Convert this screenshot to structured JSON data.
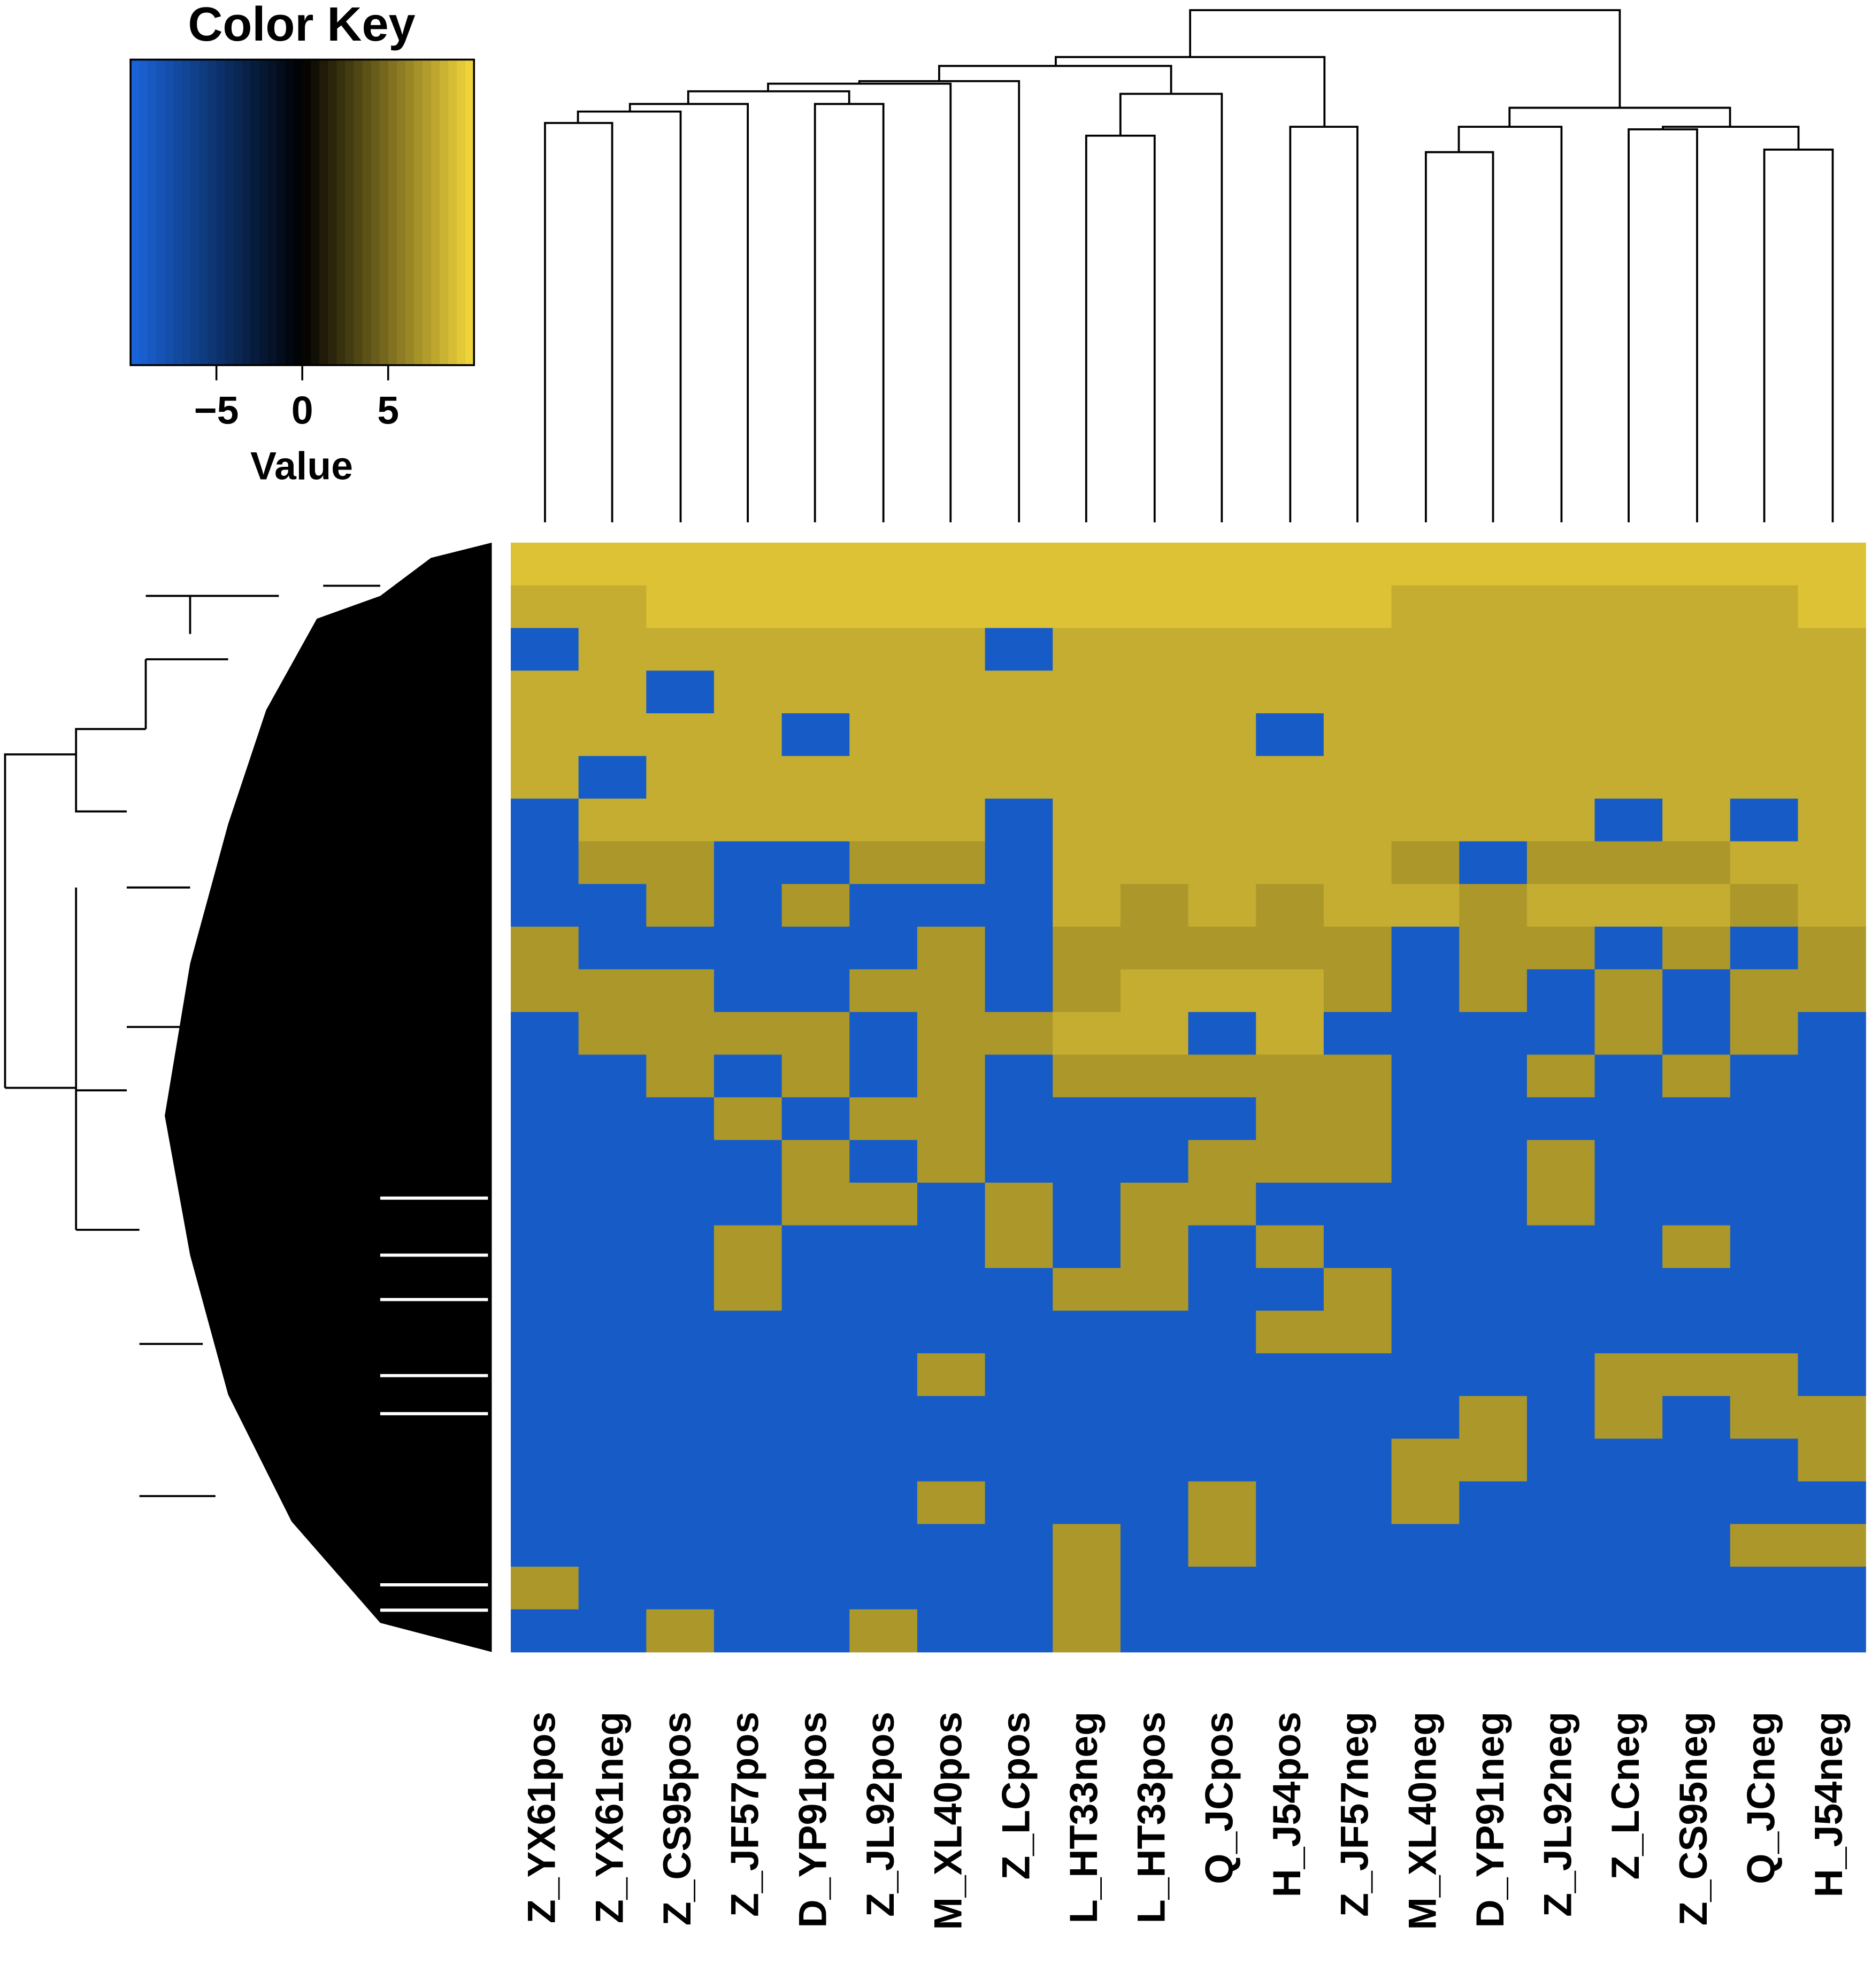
{
  "chart_data": {
    "type": "heatmap",
    "color_key": {
      "title": "Color Key",
      "label": "Value",
      "xlim": [
        -10,
        10
      ],
      "xticks": [
        {
          "value": -5,
          "label": "−5"
        },
        0,
        5
      ],
      "colors": {
        "low": "#1a66dc",
        "mid": "#000000",
        "high": "#f5d83c"
      }
    },
    "columns": [
      "Z_YX61pos",
      "Z_YX61neg",
      "Z_CS95pos",
      "Z_JF57pos",
      "D_YP91pos",
      "Z_JL92pos",
      "M_XL40pos",
      "Z_LCpos",
      "L_HT33neg",
      "L_HT33pos",
      "Q_JCpos",
      "H_J54pos",
      "Z_JF57neg",
      "M_XL40neg",
      "D_YP91neg",
      "Z_JL92neg",
      "Z_LCneg",
      "Z_CS95neg",
      "Q_JCneg",
      "H_J54neg"
    ],
    "values": [
      [
        9,
        9,
        9,
        9,
        9,
        9,
        9,
        9,
        9,
        9,
        9,
        9,
        9,
        9,
        9,
        9,
        9,
        9,
        9,
        9
      ],
      [
        8,
        8,
        9,
        9,
        9,
        9,
        9,
        9,
        9,
        9,
        9,
        9,
        9,
        8,
        8,
        8,
        8,
        8,
        8,
        9
      ],
      [
        -9,
        8,
        8,
        8,
        8,
        8,
        8,
        -9,
        8,
        8,
        8,
        8,
        8,
        8,
        8,
        8,
        8,
        8,
        8,
        8
      ],
      [
        8,
        8,
        -9,
        8,
        8,
        8,
        8,
        8,
        8,
        8,
        8,
        8,
        8,
        8,
        8,
        8,
        8,
        8,
        8,
        8
      ],
      [
        8,
        8,
        8,
        8,
        -9,
        8,
        8,
        8,
        8,
        8,
        8,
        -9,
        8,
        8,
        8,
        8,
        8,
        8,
        8,
        8
      ],
      [
        8,
        -9,
        8,
        8,
        8,
        8,
        8,
        8,
        8,
        8,
        8,
        8,
        8,
        8,
        8,
        8,
        8,
        8,
        8,
        8
      ],
      [
        -9,
        8,
        8,
        8,
        8,
        8,
        8,
        -9,
        8,
        8,
        8,
        8,
        8,
        8,
        8,
        8,
        -9,
        8,
        -9,
        8
      ],
      [
        -9,
        7,
        7,
        -9,
        -9,
        7,
        7,
        -9,
        8,
        8,
        8,
        8,
        8,
        7,
        -9,
        7,
        7,
        7,
        8,
        8
      ],
      [
        -9,
        -9,
        7,
        -9,
        7,
        -9,
        -9,
        -9,
        8,
        7,
        8,
        7,
        8,
        8,
        7,
        8,
        8,
        8,
        7,
        8
      ],
      [
        7,
        -9,
        -9,
        -9,
        -9,
        -9,
        7,
        -9,
        7,
        7,
        7,
        7,
        7,
        -9,
        7,
        7,
        -9,
        7,
        -9,
        7
      ],
      [
        7,
        7,
        7,
        -9,
        -9,
        7,
        7,
        -9,
        7,
        8,
        8,
        8,
        7,
        -9,
        7,
        -9,
        7,
        -9,
        7,
        7
      ],
      [
        -9,
        7,
        7,
        7,
        7,
        -9,
        7,
        7,
        8,
        8,
        -9,
        8,
        -9,
        -9,
        -9,
        -9,
        7,
        -9,
        7,
        -9
      ],
      [
        -9,
        -9,
        7,
        -9,
        7,
        -9,
        7,
        -9,
        7,
        7,
        7,
        7,
        7,
        -9,
        -9,
        7,
        -9,
        7,
        -9,
        -9
      ],
      [
        -9,
        -9,
        -9,
        7,
        -9,
        7,
        7,
        -9,
        -9,
        -9,
        -9,
        7,
        7,
        -9,
        -9,
        -9,
        -9,
        -9,
        -9,
        -9
      ],
      [
        -9,
        -9,
        -9,
        -9,
        7,
        -9,
        7,
        -9,
        -9,
        -9,
        7,
        7,
        7,
        -9,
        -9,
        7,
        -9,
        -9,
        -9,
        -9
      ],
      [
        -9,
        -9,
        -9,
        -9,
        7,
        7,
        -9,
        7,
        -9,
        7,
        7,
        -9,
        -9,
        -9,
        -9,
        7,
        -9,
        -9,
        -9,
        -9
      ],
      [
        -9,
        -9,
        -9,
        7,
        -9,
        -9,
        -9,
        7,
        -9,
        7,
        -9,
        7,
        -9,
        -9,
        -9,
        -9,
        -9,
        7,
        -9,
        -9
      ],
      [
        -9,
        -9,
        -9,
        7,
        -9,
        -9,
        -9,
        -9,
        7,
        7,
        -9,
        -9,
        7,
        -9,
        -9,
        -9,
        -9,
        -9,
        -9,
        -9
      ],
      [
        -9,
        -9,
        -9,
        -9,
        -9,
        -9,
        -9,
        -9,
        -9,
        -9,
        -9,
        7,
        7,
        -9,
        -9,
        -9,
        -9,
        -9,
        -9,
        -9
      ],
      [
        -9,
        -9,
        -9,
        -9,
        -9,
        -9,
        7,
        -9,
        -9,
        -9,
        -9,
        -9,
        -9,
        -9,
        -9,
        -9,
        7,
        7,
        7,
        -9
      ],
      [
        -9,
        -9,
        -9,
        -9,
        -9,
        -9,
        -9,
        -9,
        -9,
        -9,
        -9,
        -9,
        -9,
        -9,
        7,
        -9,
        7,
        -9,
        7,
        7
      ],
      [
        -9,
        -9,
        -9,
        -9,
        -9,
        -9,
        -9,
        -9,
        -9,
        -9,
        -9,
        -9,
        -9,
        7,
        7,
        -9,
        -9,
        -9,
        -9,
        7
      ],
      [
        -9,
        -9,
        -9,
        -9,
        -9,
        -9,
        7,
        -9,
        -9,
        -9,
        7,
        -9,
        -9,
        7,
        -9,
        -9,
        -9,
        -9,
        -9,
        -9
      ],
      [
        -9,
        -9,
        -9,
        -9,
        -9,
        -9,
        -9,
        -9,
        7,
        -9,
        7,
        -9,
        -9,
        -9,
        -9,
        -9,
        -9,
        -9,
        7,
        7
      ],
      [
        7,
        -9,
        -9,
        -9,
        -9,
        -9,
        -9,
        -9,
        7,
        -9,
        -9,
        -9,
        -9,
        -9,
        -9,
        -9,
        -9,
        -9,
        -9,
        -9
      ],
      [
        -9,
        -9,
        7,
        -9,
        -9,
        7,
        -9,
        -9,
        7,
        -9,
        -9,
        -9,
        -9,
        -9,
        -9,
        -9,
        -9,
        -9,
        -9,
        -9
      ]
    ]
  }
}
